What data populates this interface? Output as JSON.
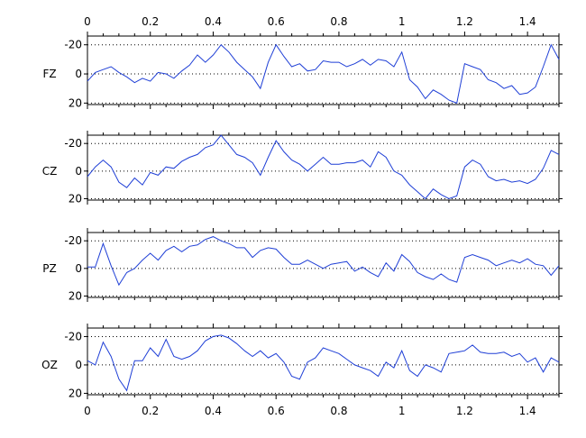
{
  "chart_data": {
    "type": "line",
    "title": "",
    "xlabel": "",
    "ylabel": "",
    "xlim": [
      0,
      1.5
    ],
    "xticks": [
      "0",
      "0.2",
      "0.4",
      "0.6",
      "0.8",
      "1",
      "1.2",
      "1.4"
    ],
    "xtick_values": [
      0,
      0.2,
      0.4,
      0.6,
      0.8,
      1,
      1.2,
      1.4
    ],
    "y_axis_reversed": true,
    "grid": "dotted horizontal at y = -20, 0, 20",
    "line_color": "#1f3fd6",
    "x": [
      0,
      0.025,
      0.05,
      0.075,
      0.1,
      0.125,
      0.15,
      0.175,
      0.2,
      0.225,
      0.25,
      0.275,
      0.3,
      0.325,
      0.35,
      0.375,
      0.4,
      0.425,
      0.45,
      0.475,
      0.5,
      0.525,
      0.55,
      0.575,
      0.6,
      0.625,
      0.65,
      0.675,
      0.7,
      0.725,
      0.75,
      0.775,
      0.8,
      0.825,
      0.85,
      0.875,
      0.9,
      0.925,
      0.95,
      0.975,
      1,
      1.025,
      1.05,
      1.075,
      1.1,
      1.125,
      1.15,
      1.175,
      1.2,
      1.225,
      1.25,
      1.275,
      1.3,
      1.325,
      1.35,
      1.375,
      1.4,
      1.425,
      1.45,
      1.475,
      1.5
    ],
    "panels": [
      {
        "name": "FZ",
        "yticks": [
          "-20",
          "0",
          "20"
        ],
        "ytick_values": [
          -20,
          0,
          20
        ],
        "ylim": [
          -26,
          21
        ],
        "values": [
          5,
          -1,
          -3,
          -5,
          -1,
          2,
          6,
          3,
          5,
          -1,
          0,
          3,
          -2,
          -6,
          -13,
          -8,
          -13,
          -20,
          -15,
          -8,
          -3,
          2,
          10,
          -8,
          -20,
          -12,
          -5,
          -7,
          -2,
          -3,
          -9,
          -8,
          -8,
          -5,
          -7,
          -10,
          -6,
          -10,
          -9,
          -5,
          -15,
          4,
          9,
          17,
          11,
          14,
          18,
          20,
          -7,
          -5,
          -3,
          4,
          6,
          10,
          8,
          14,
          13,
          9,
          -5,
          -20,
          -10
        ]
      },
      {
        "name": "CZ",
        "yticks": [
          "-20",
          "0",
          "20"
        ],
        "ytick_values": [
          -20,
          0,
          20
        ],
        "ylim": [
          -26,
          21
        ],
        "values": [
          4,
          -3,
          -8,
          -3,
          8,
          12,
          5,
          10,
          1,
          3,
          -3,
          -2,
          -7,
          -10,
          -12,
          -17,
          -19,
          -26,
          -19,
          -12,
          -10,
          -6,
          3,
          -10,
          -22,
          -14,
          -8,
          -5,
          0,
          -5,
          -10,
          -5,
          -5,
          -6,
          -6,
          -8,
          -3,
          -14,
          -10,
          0,
          3,
          10,
          15,
          20,
          13,
          17,
          20,
          18,
          -3,
          -8,
          -5,
          4,
          7,
          6,
          8,
          7,
          9,
          6,
          -2,
          -15,
          -12
        ]
      },
      {
        "name": "PZ",
        "yticks": [
          "-20",
          "0",
          "20"
        ],
        "ytick_values": [
          -20,
          0,
          20
        ],
        "ylim": [
          -26,
          21
        ],
        "values": [
          -1,
          -1,
          -18,
          -2,
          12,
          3,
          0,
          -6,
          -11,
          -6,
          -13,
          -16,
          -12,
          -16,
          -17,
          -21,
          -23,
          -20,
          -18,
          -15,
          -15,
          -8,
          -13,
          -15,
          -14,
          -8,
          -3,
          -3,
          -6,
          -3,
          0,
          -3,
          -4,
          -5,
          2,
          -1,
          3,
          6,
          -4,
          2,
          -10,
          -5,
          3,
          6,
          8,
          4,
          8,
          10,
          -8,
          -10,
          -8,
          -6,
          -2,
          -4,
          -6,
          -4,
          -7,
          -3,
          -2,
          5,
          -2
        ]
      },
      {
        "name": "OZ",
        "yticks": [
          "-20",
          "0",
          "20"
        ],
        "ytick_values": [
          -20,
          0,
          20
        ],
        "ylim": [
          -26,
          21
        ],
        "values": [
          -3,
          0,
          -16,
          -6,
          10,
          18,
          -3,
          -3,
          -12,
          -6,
          -18,
          -6,
          -4,
          -6,
          -10,
          -17,
          -20,
          -21,
          -19,
          -15,
          -10,
          -6,
          -10,
          -5,
          -8,
          -2,
          8,
          10,
          -2,
          -5,
          -12,
          -10,
          -8,
          -4,
          0,
          2,
          4,
          8,
          -2,
          2,
          -10,
          4,
          8,
          0,
          2,
          5,
          -8,
          -9,
          -10,
          -14,
          -9,
          -8,
          -8,
          -9,
          -6,
          -8,
          -2,
          -5,
          5,
          -5,
          -2
        ]
      }
    ]
  }
}
